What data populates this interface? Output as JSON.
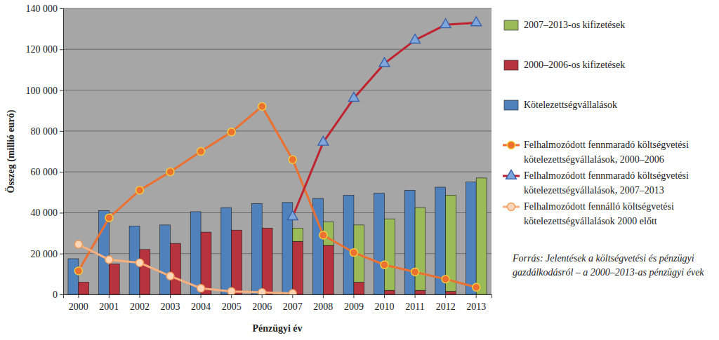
{
  "chart_data": {
    "type": "bar",
    "x_label": "Pénzügyi év",
    "y_label": "Összeg (millió euró)",
    "source": "Forrás: Jelentések a költségvetési és pénzügyi gazdálkodásról – a 2000–2013-as pénzügyi évek",
    "categories": [
      "2000",
      "2001",
      "2002",
      "2003",
      "2004",
      "2005",
      "2006",
      "2007",
      "2008",
      "2009",
      "2010",
      "2011",
      "2012",
      "2013"
    ],
    "ylim": [
      0,
      140000
    ],
    "yticks": [
      0,
      {
        "value": 20000,
        "label": "20 000"
      },
      {
        "value": 40000,
        "label": "40 000"
      },
      {
        "value": 60000,
        "label": "60 000"
      },
      {
        "value": 80000,
        "label": "80 000"
      },
      {
        "value": 100000,
        "label": "100 000"
      },
      {
        "value": 120000,
        "label": "120 000"
      },
      {
        "value": 140000,
        "label": "140 000"
      }
    ],
    "grid": true,
    "legend": "right",
    "series": [
      {
        "name": "2007–2013-os kifizetések",
        "type": "bar",
        "stacked": true,
        "color": "#9bbb59",
        "values": [
          null,
          null,
          null,
          null,
          null,
          null,
          null,
          6500,
          11500,
          28000,
          35000,
          40500,
          47000,
          57000
        ]
      },
      {
        "name": "2000–2006-os kifizetések",
        "type": "bar",
        "stacked": true,
        "color": "#b7343f",
        "values": [
          6000,
          15000,
          22000,
          25000,
          30500,
          31500,
          32500,
          26000,
          24000,
          6000,
          2000,
          2000,
          1500,
          null
        ]
      },
      {
        "name": "Kötelezettségvállalások",
        "type": "bar",
        "stacked": false,
        "color": "#4f81bd",
        "values": [
          17500,
          41000,
          33500,
          34000,
          40500,
          42500,
          44500,
          45000,
          47000,
          48500,
          49500,
          51000,
          52500,
          55000
        ]
      },
      {
        "name": "Felhalmozódott fennmaradó költségvetési kötelezettségvállalások, 2000–2006",
        "type": "line",
        "marker": "circle",
        "color": "#ec7030",
        "values": [
          11500,
          37500,
          51000,
          60000,
          70000,
          79500,
          92000,
          66000,
          29000,
          20500,
          14500,
          11000,
          7500,
          3500
        ]
      },
      {
        "name": "Felhalmozódott fennmaradó költségvetési kötelezettségvállalások, 2007–2013",
        "type": "line",
        "marker": "triangle",
        "color": "#c0232d",
        "values": [
          null,
          null,
          null,
          null,
          null,
          null,
          null,
          38000,
          74500,
          96000,
          113000,
          124500,
          132000,
          133000
        ]
      },
      {
        "name": "Felhalmozódott fennálló költségvetési kötelezettségvállalások 2000 előtt",
        "type": "line",
        "marker": "circle",
        "color": "#f7b07e",
        "values": [
          24500,
          17000,
          15500,
          9000,
          3000,
          1500,
          1000,
          500,
          null,
          null,
          null,
          null,
          null,
          null
        ]
      }
    ]
  }
}
